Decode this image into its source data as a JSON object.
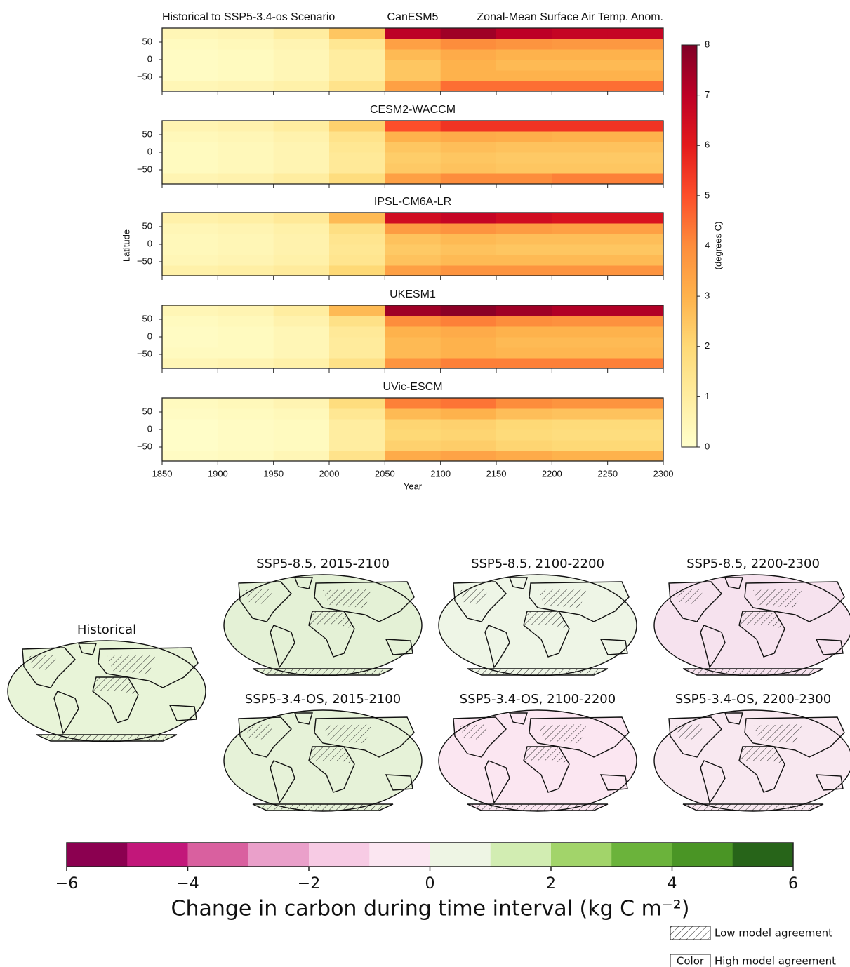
{
  "chart_data": [
    {
      "type": "heatmap",
      "left_title": "Historical to SSP5-3.4-os Scenario",
      "right_title": "Zonal-Mean Surface Air Temp. Anom.",
      "ylabel": "Latitude",
      "xlabel": "Year",
      "xlim": [
        1850,
        2300
      ],
      "xticks": [
        1850,
        1900,
        1950,
        2000,
        2050,
        2100,
        2150,
        2200,
        2250,
        2300
      ],
      "ylim": [
        -90,
        90
      ],
      "yticks": [
        {
          "value": -50,
          "label": "−50"
        },
        0,
        50
      ],
      "x_bins": [
        1850,
        1900,
        1950,
        2000,
        2050,
        2100,
        2150,
        2200,
        2250,
        2300
      ],
      "y_bins": [
        -90,
        -60,
        -30,
        0,
        30,
        60,
        90
      ],
      "colorbar": {
        "label": "(degrees C)",
        "lim": [
          0,
          8
        ],
        "ticks": [
          0,
          1,
          2,
          3,
          4,
          5,
          6,
          7,
          8
        ],
        "colormap": [
          "#ffffcc",
          "#ffeda0",
          "#fed976",
          "#feb24c",
          "#fd8d3c",
          "#fc4e2a",
          "#e31a1c",
          "#bd0026",
          "#800026"
        ]
      },
      "panels": [
        {
          "title": "CanESM5",
          "values": [
            [
              0.5,
              0.6,
              0.8,
              1.5,
              3.5,
              4.5,
              4.5,
              4.5,
              4.5
            ],
            [
              0.2,
              0.3,
              0.5,
              1,
              2.5,
              3,
              3,
              3,
              3
            ],
            [
              0.2,
              0.3,
              0.5,
              1,
              2.5,
              3,
              2.8,
              2.8,
              2.8
            ],
            [
              0.2,
              0.3,
              0.5,
              1,
              2.8,
              3.2,
              3,
              3,
              3
            ],
            [
              0.3,
              0.4,
              0.6,
              1.3,
              3.5,
              4,
              3.8,
              3.7,
              3.7
            ],
            [
              0.5,
              0.6,
              1,
              2.5,
              7,
              7.5,
              7,
              6.8,
              6.8
            ]
          ]
        },
        {
          "title": "CESM2-WACCM",
          "values": [
            [
              0.6,
              0.7,
              1,
              1.8,
              3.5,
              4,
              4,
              4.2,
              4.2
            ],
            [
              0.3,
              0.4,
              0.6,
              1.2,
              2.4,
              2.6,
              2.5,
              2.5,
              2.5
            ],
            [
              0.3,
              0.4,
              0.6,
              1.2,
              2.3,
              2.5,
              2.4,
              2.4,
              2.4
            ],
            [
              0.3,
              0.4,
              0.6,
              1.3,
              2.5,
              2.7,
              2.6,
              2.6,
              2.6
            ],
            [
              0.4,
              0.5,
              0.7,
              1.5,
              3,
              3.2,
              3.1,
              3,
              3
            ],
            [
              0.6,
              0.7,
              1,
              2.2,
              5,
              5.5,
              5.5,
              5.5,
              5.5
            ]
          ]
        },
        {
          "title": "IPSL-CM6A-LR",
          "values": [
            [
              0.8,
              0.9,
              1.1,
              2,
              3.5,
              3.8,
              3.8,
              3.8,
              3.8
            ],
            [
              0.5,
              0.6,
              0.8,
              1.4,
              2.6,
              2.8,
              2.8,
              2.8,
              2.8
            ],
            [
              0.4,
              0.5,
              0.7,
              1.3,
              2.4,
              2.6,
              2.5,
              2.5,
              2.5
            ],
            [
              0.4,
              0.5,
              0.7,
              1.4,
              2.6,
              2.8,
              2.7,
              2.7,
              2.7
            ],
            [
              0.5,
              0.6,
              0.8,
              1.7,
              3.6,
              3.8,
              3.6,
              3.5,
              3.5
            ],
            [
              0.8,
              0.9,
              1.2,
              2.8,
              6.5,
              6.8,
              6.5,
              6.3,
              6.3
            ]
          ]
        },
        {
          "title": "UKESM1",
          "values": [
            [
              0.5,
              0.6,
              0.8,
              1.6,
              3.8,
              4.2,
              4.2,
              4.2,
              4.2
            ],
            [
              0.3,
              0.3,
              0.5,
              1.1,
              2.8,
              3,
              2.9,
              2.9,
              2.9
            ],
            [
              0.2,
              0.3,
              0.5,
              1.1,
              2.8,
              3,
              2.8,
              2.8,
              2.8
            ],
            [
              0.2,
              0.3,
              0.5,
              1.2,
              3,
              3.2,
              3,
              3,
              3
            ],
            [
              0.3,
              0.4,
              0.7,
              1.6,
              4,
              4.2,
              4,
              3.9,
              3.9
            ],
            [
              0.5,
              0.6,
              1,
              2.8,
              7.5,
              7.8,
              7.5,
              7.2,
              7.2
            ]
          ]
        },
        {
          "title": "UVic-ESCM",
          "values": [
            [
              0.2,
              0.3,
              0.5,
              1.5,
              3.2,
              3.4,
              3.2,
              3,
              3
            ],
            [
              0.1,
              0.2,
              0.3,
              1,
              2.2,
              2.3,
              2.1,
              2,
              2
            ],
            [
              0.1,
              0.2,
              0.3,
              1,
              2,
              2.1,
              1.9,
              1.8,
              1.8
            ],
            [
              0.1,
              0.2,
              0.3,
              1,
              2.1,
              2.2,
              2,
              1.9,
              1.9
            ],
            [
              0.2,
              0.3,
              0.4,
              1.3,
              2.8,
              3,
              2.7,
              2.6,
              2.6
            ],
            [
              0.3,
              0.4,
              0.6,
              1.8,
              4.2,
              4.4,
              4,
              3.8,
              3.8
            ]
          ]
        }
      ]
    },
    {
      "type": "maps",
      "maps": [
        {
          "title": "Historical",
          "color": "#e8f4d8"
        },
        {
          "title": "SSP5-8.5, 2015-2100",
          "color": "#e4f1d6"
        },
        {
          "title": "SSP5-8.5, 2100-2200",
          "color": "#eef5e6"
        },
        {
          "title": "SSP5-8.5, 2200-2300",
          "color": "#f6e2ee"
        },
        {
          "title": "SSP5-3.4-OS, 2015-2100",
          "color": "#e6f2d8"
        },
        {
          "title": "SSP5-3.4-OS, 2100-2200",
          "color": "#fbe6f1"
        },
        {
          "title": "SSP5-3.4-OS, 2200-2300",
          "color": "#f8e8f0"
        }
      ],
      "colorbar": {
        "xlabel": "Change in carbon during time interval (kg C m⁻²)",
        "xlim": [
          -6,
          6
        ],
        "xticks": [
          {
            "value": -6,
            "label": "−6"
          },
          {
            "value": -4,
            "label": "−4"
          },
          {
            "value": -2,
            "label": "−2"
          },
          0,
          2,
          4,
          6
        ],
        "colors": [
          "#8b0050",
          "#c2177a",
          "#d9609f",
          "#eaa0ca",
          "#f7cbe4",
          "#fbe6f1",
          "#eef5e4",
          "#d2edb2",
          "#a2d46a",
          "#6bb33b",
          "#4a9525",
          "#276419"
        ]
      },
      "legend": {
        "hatch_label": "Low model agreement",
        "color_box": "Color",
        "color_label": "High model agreement"
      }
    }
  ]
}
